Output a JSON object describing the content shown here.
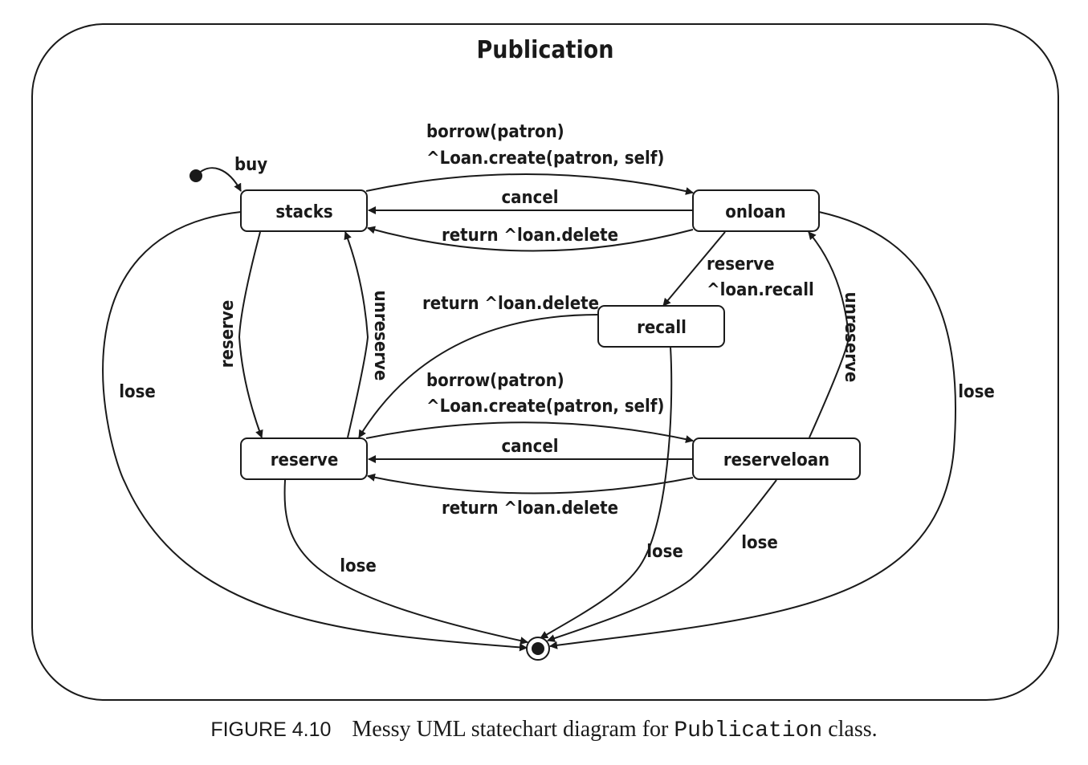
{
  "title": "Publication",
  "states": {
    "stacks": "stacks",
    "onloan": "onloan",
    "recall": "recall",
    "reserve": "reserve",
    "reserveloan": "reserveloan"
  },
  "transitions": {
    "buy": "buy",
    "borrow_top_1": "borrow(patron)",
    "borrow_top_2": "^Loan.create(patron, self)",
    "cancel_top": "cancel",
    "return_top": "return ^loan.delete",
    "reserve_onloan_1": "reserve",
    "reserve_onloan_2": "^loan.recall",
    "return_recall": "return ^loan.delete",
    "reserve_left": "reserve",
    "unreserve_left": "unreserve",
    "unreserve_right": "unreserve",
    "borrow_mid_1": "borrow(patron)",
    "borrow_mid_2": "^Loan.create(patron, self)",
    "cancel_mid": "cancel",
    "return_mid": "return ^loan.delete",
    "lose_left": "lose",
    "lose_right": "lose",
    "lose_reserve": "lose",
    "lose_recall": "lose",
    "lose_reserveloan": "lose"
  },
  "caption": {
    "figure": "FIGURE 4.10",
    "text": "Messy UML statechart diagram for",
    "code": "Publication",
    "suffix": "class."
  }
}
